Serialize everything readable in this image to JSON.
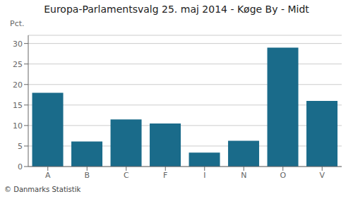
{
  "chart_data": {
    "type": "bar",
    "title": "Europa-Parlamentsvalg 25. maj 2014 - Køge By - Midt",
    "categories": [
      "A",
      "B",
      "C",
      "F",
      "I",
      "N",
      "O",
      "V"
    ],
    "values": [
      18.0,
      6.1,
      11.5,
      10.5,
      3.4,
      6.3,
      29.0,
      16.0
    ],
    "color": "#1a6b8a",
    "ylabel": "Pct.",
    "ylim": [
      0,
      32
    ],
    "yticks": [
      0,
      5,
      10,
      15,
      20,
      25,
      30
    ],
    "grid": true,
    "annotations": [
      "© Danmarks Statistik"
    ]
  }
}
